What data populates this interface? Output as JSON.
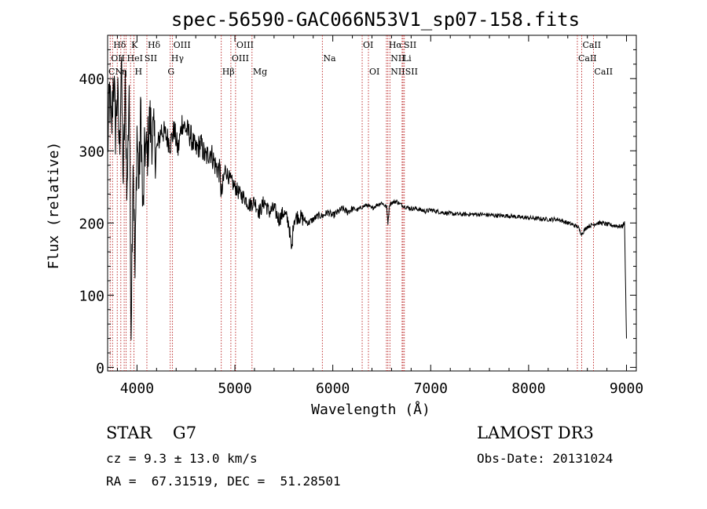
{
  "chart_data": {
    "type": "line",
    "title": "spec-56590-GAC066N53V1_sp07-158.fits",
    "xlabel": "Wavelength (Å)",
    "ylabel": "Flux (relative)",
    "xlim": [
      3700,
      9100
    ],
    "ylim": [
      -5,
      460
    ],
    "xticks": [
      4000,
      5000,
      6000,
      7000,
      8000,
      9000
    ],
    "yticks": [
      0,
      100,
      200,
      300,
      400
    ],
    "series": [
      {
        "name": "flux",
        "x": [
          3700,
          3720,
          3740,
          3760,
          3780,
          3800,
          3820,
          3840,
          3860,
          3880,
          3900,
          3920,
          3940,
          3960,
          3980,
          4000,
          4020,
          4040,
          4060,
          4080,
          4100,
          4130,
          4160,
          4200,
          4250,
          4300,
          4340,
          4380,
          4420,
          4460,
          4500,
          4550,
          4600,
          4650,
          4700,
          4750,
          4800,
          4850,
          4861,
          4900,
          4950,
          5000,
          5050,
          5100,
          5150,
          5200,
          5250,
          5300,
          5350,
          5400,
          5450,
          5500,
          5550,
          5580,
          5600,
          5650,
          5700,
          5750,
          5800,
          5850,
          5900,
          5950,
          6000,
          6050,
          6100,
          6150,
          6200,
          6250,
          6300,
          6350,
          6400,
          6450,
          6500,
          6550,
          6563,
          6580,
          6600,
          6650,
          6700,
          6750,
          6800,
          6850,
          6900,
          6950,
          7000,
          7100,
          7200,
          7300,
          7400,
          7500,
          7600,
          7700,
          7800,
          7900,
          8000,
          8100,
          8200,
          8300,
          8400,
          8500,
          8542,
          8600,
          8662,
          8700,
          8750,
          8800,
          8850,
          8900,
          8950,
          8980,
          9000
        ],
        "y": [
          300,
          380,
          320,
          410,
          330,
          380,
          300,
          420,
          260,
          380,
          240,
          400,
          60,
          300,
          120,
          330,
          250,
          360,
          200,
          310,
          290,
          340,
          320,
          300,
          330,
          320,
          310,
          330,
          300,
          340,
          330,
          320,
          300,
          310,
          290,
          300,
          280,
          270,
          235,
          275,
          260,
          250,
          240,
          235,
          225,
          230,
          215,
          230,
          215,
          220,
          205,
          215,
          200,
          160,
          205,
          210,
          205,
          200,
          205,
          210,
          210,
          215,
          210,
          215,
          220,
          215,
          220,
          218,
          222,
          225,
          220,
          225,
          228,
          222,
          200,
          226,
          228,
          230,
          225,
          222,
          220,
          220,
          218,
          216,
          218,
          215,
          213,
          212,
          212,
          212,
          211,
          210,
          210,
          208,
          207,
          206,
          205,
          205,
          200,
          195,
          185,
          195,
          198,
          200,
          200,
          198,
          197,
          196,
          195,
          200,
          40
        ]
      }
    ],
    "line_labels_top": [
      "Hδ",
      "K",
      "Hδ",
      "OIII",
      "OIII",
      "OI",
      "Hα",
      "SII",
      "CaII"
    ],
    "line_labels_mid": [
      "OII",
      "HeI",
      "SII",
      "Hγ",
      "OIII",
      "Na",
      "NII",
      "Li",
      "CaII"
    ],
    "line_labels_low": [
      "CN",
      "η",
      "H",
      "G",
      "Hβ",
      "Mg",
      "OI",
      "NII",
      "SII",
      "CaII"
    ]
  },
  "footer": {
    "object": "STAR    G7",
    "survey": "LAMOST DR3",
    "velocity": "cz = 9.3 ± 13.0 km/s",
    "obs_date": "Obs-Date: 20131024",
    "coords": "RA =  67.31519, DEC =  51.28501"
  }
}
